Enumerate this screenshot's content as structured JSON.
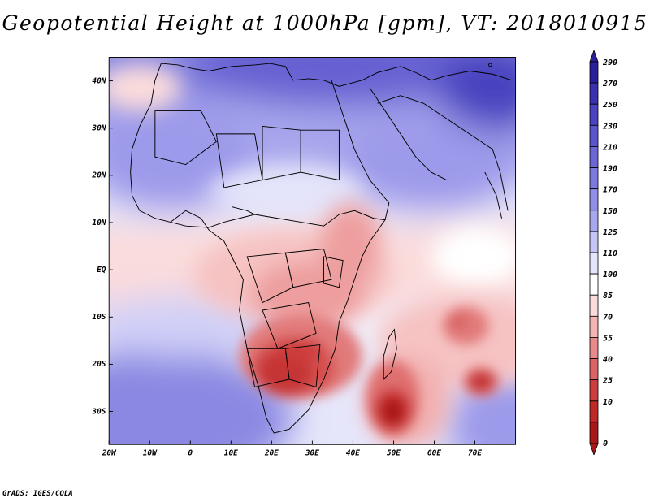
{
  "title": "Geopotential Height at 1000hPa [gpm], VT: 2018010915",
  "footer": "GrADS: IGES/COLA",
  "map": {
    "lon_range": [
      -20,
      80
    ],
    "lat_range": [
      -37,
      45
    ],
    "lon_ticks": [
      {
        "value": -20,
        "label": "20W"
      },
      {
        "value": -10,
        "label": "10W"
      },
      {
        "value": 0,
        "label": "0"
      },
      {
        "value": 10,
        "label": "10E"
      },
      {
        "value": 20,
        "label": "20E"
      },
      {
        "value": 30,
        "label": "30E"
      },
      {
        "value": 40,
        "label": "40E"
      },
      {
        "value": 50,
        "label": "50E"
      },
      {
        "value": 60,
        "label": "60E"
      },
      {
        "value": 70,
        "label": "70E"
      }
    ],
    "lat_ticks": [
      {
        "value": 40,
        "label": "40N"
      },
      {
        "value": 30,
        "label": "30N"
      },
      {
        "value": 20,
        "label": "20N"
      },
      {
        "value": 10,
        "label": "10N"
      },
      {
        "value": 0,
        "label": "EQ"
      },
      {
        "value": -10,
        "label": "10S"
      },
      {
        "value": -20,
        "label": "20S"
      },
      {
        "value": -30,
        "label": "30S"
      }
    ]
  },
  "legend": {
    "levels": [
      "290",
      "270",
      "250",
      "230",
      "210",
      "190",
      "170",
      "150",
      "125",
      "110",
      "100",
      "85",
      "70",
      "55",
      "40",
      "25",
      "10",
      "0"
    ],
    "colors_top_to_bottom": [
      "#2a1f9a",
      "#3a30b0",
      "#4a42c0",
      "#5a55cc",
      "#6b68d6",
      "#7c7ade",
      "#908ee6",
      "#a8a8ee",
      "#c6c6f6",
      "#e4e4fa",
      "#ffffff",
      "#fbdcdc",
      "#f4b4b4",
      "#e88a8a",
      "#dc6464",
      "#cf3e3e",
      "#c02828",
      "#a81818"
    ],
    "top_arrow_color": "#2a1f9a",
    "bottom_arrow_color": "#a81818"
  }
}
